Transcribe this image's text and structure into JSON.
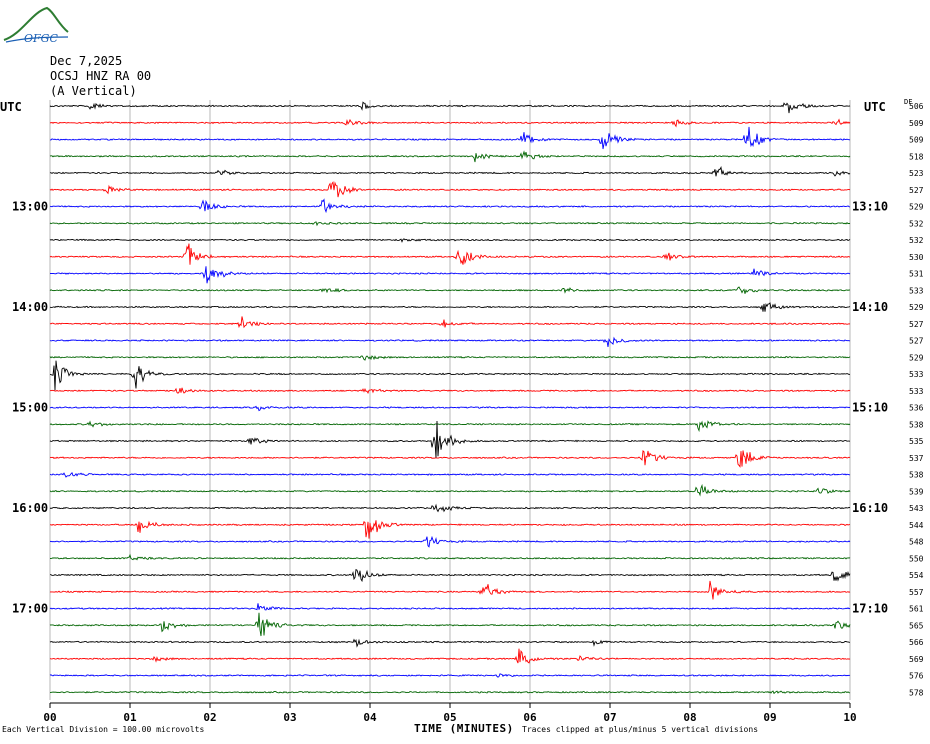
{
  "logo": {
    "text": "OFGC",
    "icon": "mountain-logo-icon",
    "color": "#2e7d32"
  },
  "header": {
    "date": "Dec 7,2025",
    "station": "OCSJ HNZ RA 00",
    "component": "(A Vertical)"
  },
  "utc_left": "UTC",
  "utc_right": "UTC",
  "df_label": "DF",
  "chart_data": {
    "type": "line",
    "title": "",
    "xlabel": "TIME (MINUTES)",
    "x_ticks": [
      "00",
      "01",
      "02",
      "03",
      "04",
      "05",
      "06",
      "07",
      "08",
      "09",
      "10"
    ],
    "xlim": [
      0,
      10
    ],
    "trace_colors": [
      "#000000",
      "#ff0000",
      "#0000ff",
      "#006400"
    ],
    "rows": 36,
    "left_time_labels": [
      {
        "row": 6,
        "text": "13:00"
      },
      {
        "row": 12,
        "text": "14:00"
      },
      {
        "row": 18,
        "text": "15:00"
      },
      {
        "row": 24,
        "text": "16:00"
      },
      {
        "row": 30,
        "text": "17:00"
      }
    ],
    "right_time_labels": [
      {
        "row": 6,
        "text": "13:10"
      },
      {
        "row": 12,
        "text": "14:10"
      },
      {
        "row": 18,
        "text": "15:10"
      },
      {
        "row": 24,
        "text": "16:10"
      },
      {
        "row": 30,
        "text": "17:10"
      }
    ],
    "dc_values": [
      "506",
      "509",
      "509",
      "518",
      "523",
      "527",
      "529",
      "532",
      "532",
      "530",
      "531",
      "533",
      "529",
      "527",
      "527",
      "529",
      "533",
      "533",
      "536",
      "538",
      "535",
      "537",
      "538",
      "539",
      "543",
      "544",
      "548",
      "550",
      "554",
      "557",
      "561",
      "565",
      "566",
      "569",
      "576",
      "578"
    ],
    "events": [
      {
        "row": 0,
        "x": 0.5,
        "amp": 0.4
      },
      {
        "row": 0,
        "x": 3.9,
        "amp": 0.4
      },
      {
        "row": 0,
        "x": 9.2,
        "amp": 1.0
      },
      {
        "row": 1,
        "x": 3.7,
        "amp": 0.5
      },
      {
        "row": 1,
        "x": 7.8,
        "amp": 0.4
      },
      {
        "row": 1,
        "x": 9.8,
        "amp": 0.4
      },
      {
        "row": 2,
        "x": 5.9,
        "amp": 1.2
      },
      {
        "row": 2,
        "x": 6.9,
        "amp": 1.8
      },
      {
        "row": 2,
        "x": 8.7,
        "amp": 1.6
      },
      {
        "row": 3,
        "x": 5.3,
        "amp": 0.6
      },
      {
        "row": 3,
        "x": 5.9,
        "amp": 0.7
      },
      {
        "row": 4,
        "x": 2.1,
        "amp": 0.4
      },
      {
        "row": 4,
        "x": 8.3,
        "amp": 1.0
      },
      {
        "row": 4,
        "x": 9.8,
        "amp": 0.3
      },
      {
        "row": 5,
        "x": 0.7,
        "amp": 0.5
      },
      {
        "row": 5,
        "x": 3.5,
        "amp": 1.7
      },
      {
        "row": 6,
        "x": 1.9,
        "amp": 0.8
      },
      {
        "row": 6,
        "x": 3.4,
        "amp": 1.0
      },
      {
        "row": 7,
        "x": 3.3,
        "amp": 0.3
      },
      {
        "row": 8,
        "x": 4.4,
        "amp": 0.2
      },
      {
        "row": 9,
        "x": 1.7,
        "amp": 1.8
      },
      {
        "row": 9,
        "x": 5.1,
        "amp": 1.7
      },
      {
        "row": 9,
        "x": 7.7,
        "amp": 0.5
      },
      {
        "row": 10,
        "x": 1.95,
        "amp": 1.6
      },
      {
        "row": 10,
        "x": 8.8,
        "amp": 0.5
      },
      {
        "row": 11,
        "x": 3.4,
        "amp": 0.4
      },
      {
        "row": 11,
        "x": 6.4,
        "amp": 0.4
      },
      {
        "row": 11,
        "x": 8.6,
        "amp": 0.7
      },
      {
        "row": 12,
        "x": 8.9,
        "amp": 0.8
      },
      {
        "row": 13,
        "x": 2.35,
        "amp": 1.0
      },
      {
        "row": 13,
        "x": 4.9,
        "amp": 0.6
      },
      {
        "row": 14,
        "x": 6.95,
        "amp": 1.0
      },
      {
        "row": 15,
        "x": 3.9,
        "amp": 0.5
      },
      {
        "row": 16,
        "x": 0.05,
        "amp": 1.8
      },
      {
        "row": 16,
        "x": 1.05,
        "amp": 1.6
      },
      {
        "row": 17,
        "x": 1.6,
        "amp": 0.5
      },
      {
        "row": 17,
        "x": 3.9,
        "amp": 0.5
      },
      {
        "row": 18,
        "x": 2.6,
        "amp": 0.3
      },
      {
        "row": 19,
        "x": 0.5,
        "amp": 0.4
      },
      {
        "row": 19,
        "x": 8.1,
        "amp": 0.9
      },
      {
        "row": 20,
        "x": 2.5,
        "amp": 0.5
      },
      {
        "row": 20,
        "x": 4.8,
        "amp": 2.8
      },
      {
        "row": 21,
        "x": 7.4,
        "amp": 1.6
      },
      {
        "row": 21,
        "x": 8.6,
        "amp": 1.8
      },
      {
        "row": 22,
        "x": 0.2,
        "amp": 0.4
      },
      {
        "row": 23,
        "x": 8.1,
        "amp": 1.0
      },
      {
        "row": 23,
        "x": 9.6,
        "amp": 0.4
      },
      {
        "row": 24,
        "x": 4.8,
        "amp": 0.8
      },
      {
        "row": 25,
        "x": 1.1,
        "amp": 1.0
      },
      {
        "row": 25,
        "x": 3.95,
        "amp": 2.4
      },
      {
        "row": 26,
        "x": 4.7,
        "amp": 0.9
      },
      {
        "row": 27,
        "x": 1.0,
        "amp": 0.3
      },
      {
        "row": 28,
        "x": 3.8,
        "amp": 1.3
      },
      {
        "row": 28,
        "x": 9.8,
        "amp": 1.2
      },
      {
        "row": 29,
        "x": 5.4,
        "amp": 1.3
      },
      {
        "row": 29,
        "x": 8.25,
        "amp": 1.3
      },
      {
        "row": 30,
        "x": 2.6,
        "amp": 0.5
      },
      {
        "row": 31,
        "x": 1.4,
        "amp": 0.8
      },
      {
        "row": 31,
        "x": 2.6,
        "amp": 1.8
      },
      {
        "row": 31,
        "x": 9.8,
        "amp": 0.6
      },
      {
        "row": 32,
        "x": 3.8,
        "amp": 0.6
      },
      {
        "row": 32,
        "x": 6.8,
        "amp": 0.3
      },
      {
        "row": 33,
        "x": 1.3,
        "amp": 0.3
      },
      {
        "row": 33,
        "x": 5.85,
        "amp": 1.1
      },
      {
        "row": 33,
        "x": 6.6,
        "amp": 0.3
      },
      {
        "row": 34,
        "x": 5.6,
        "amp": 0.2
      },
      {
        "row": 35,
        "x": 9.0,
        "amp": 0.2
      }
    ]
  },
  "footer": {
    "left_note": "Each Vertical Division =  100.00 microvolts",
    "right_note": "Traces clipped at plus/minus 5 vertical divisions"
  }
}
